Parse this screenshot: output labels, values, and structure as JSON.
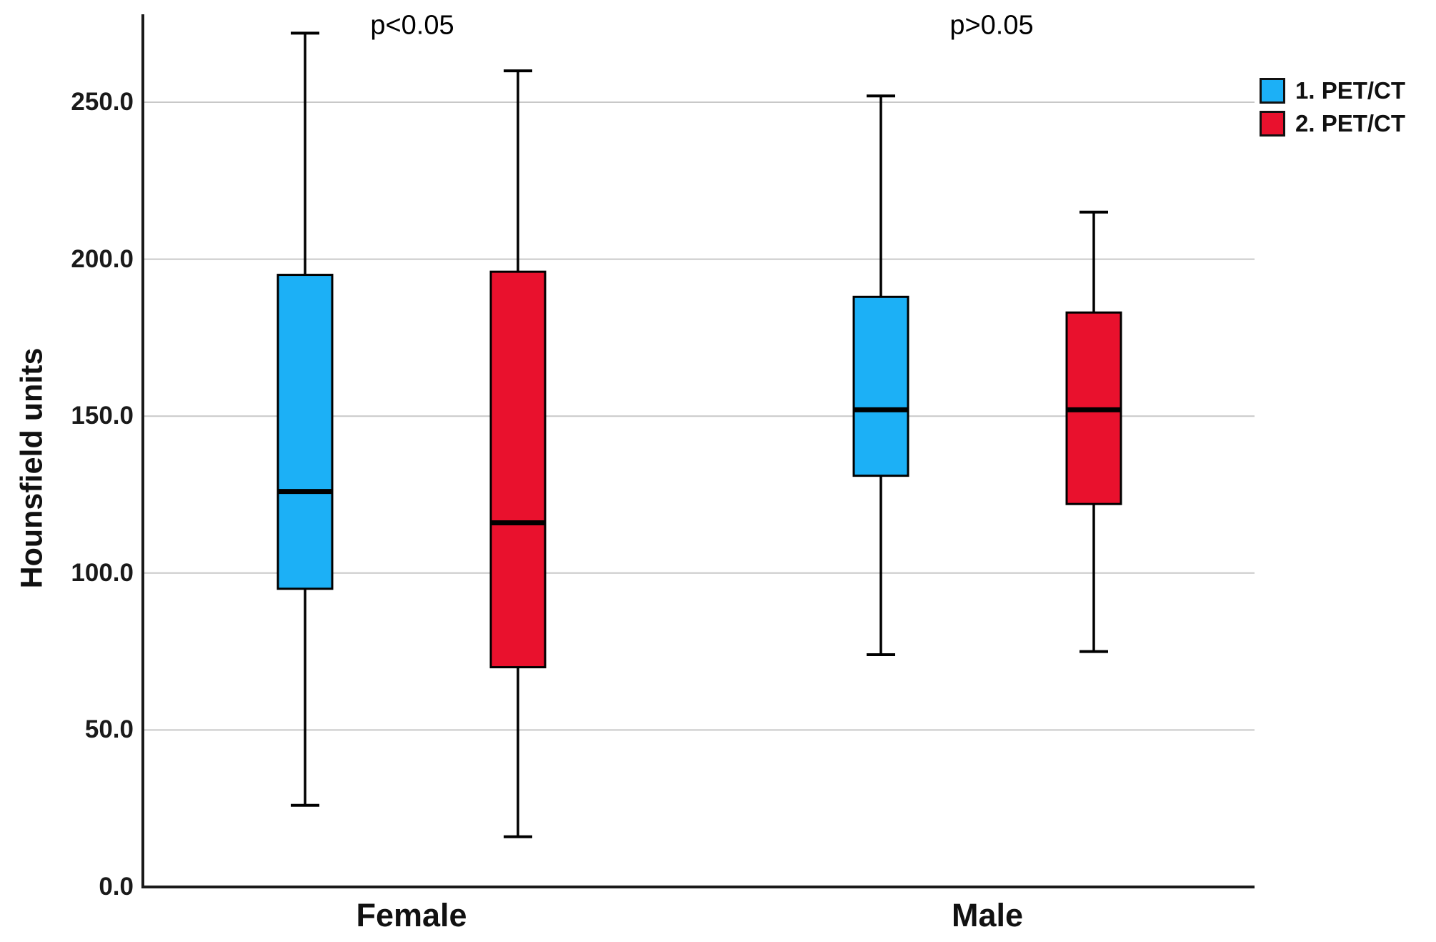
{
  "chart_data": {
    "type": "boxplot",
    "title": "",
    "xlabel": "",
    "ylabel": "Hounsfield units",
    "y_unit": "Hounsfield units",
    "ylim": [
      0,
      275
    ],
    "yticks": [
      0,
      50,
      100,
      150,
      200,
      250
    ],
    "ytick_labels": [
      "0.0",
      "50.0",
      "100.0",
      "150.0",
      "200.0",
      "250.0"
    ],
    "grid": true,
    "legend_position": "top-right",
    "categories": [
      "Female",
      "Male"
    ],
    "series": [
      {
        "name": "1. PET/CT",
        "color": "#1CB0F6",
        "boxes": [
          {
            "category": "Female",
            "min": 26,
            "q1": 95,
            "median": 126,
            "q3": 195,
            "max": 272
          },
          {
            "category": "Male",
            "min": 74,
            "q1": 131,
            "median": 152,
            "q3": 188,
            "max": 252
          }
        ]
      },
      {
        "name": "2. PET/CT",
        "color": "#E9112D",
        "boxes": [
          {
            "category": "Female",
            "min": 16,
            "q1": 70,
            "median": 116,
            "q3": 196,
            "max": 260
          },
          {
            "category": "Male",
            "min": 75,
            "q1": 122,
            "median": 152,
            "q3": 183,
            "max": 215
          }
        ]
      }
    ],
    "annotations": [
      {
        "text": "p<0.05",
        "category": "Female"
      },
      {
        "text": "p>0.05",
        "category": "Male"
      }
    ],
    "colors": {
      "series1": "#1CB0F6",
      "series2": "#E9112D",
      "gridline": "#c8c8c8",
      "axis": "#1a1a1a",
      "box_border": "#000000",
      "median": "#000000"
    }
  }
}
